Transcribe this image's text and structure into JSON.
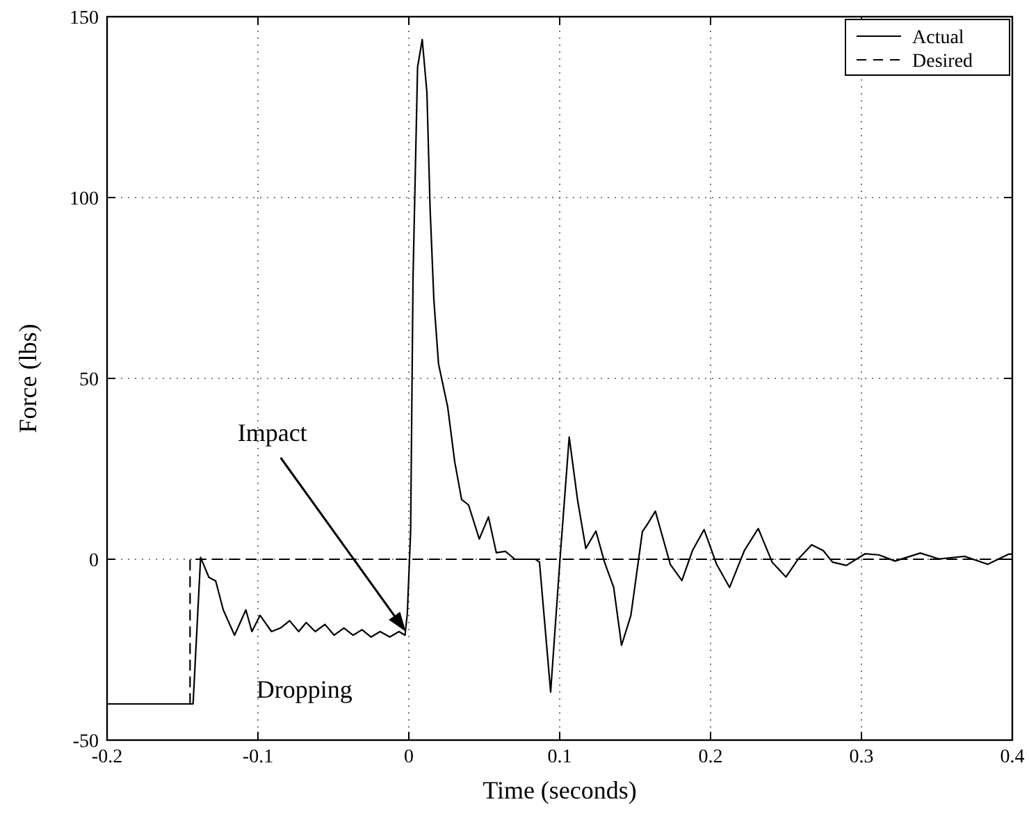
{
  "chart_data": {
    "type": "line",
    "xlabel": "Time (seconds)",
    "ylabel": "Force (lbs)",
    "xlim": [
      -0.2,
      0.4
    ],
    "xticks": [
      -0.2,
      -0.1,
      0,
      0.1,
      0.2,
      0.3,
      0.4
    ],
    "ylim": [
      -50,
      150
    ],
    "yticks": [
      -50,
      0,
      50,
      100,
      150
    ],
    "grid": true,
    "legend": "top right",
    "series": [
      {
        "name": "Actual",
        "color": "#000000",
        "line_style": "solid",
        "x": [
          -0.2,
          -0.143,
          -0.138,
          -0.1325,
          -0.128,
          -0.123,
          -0.1155,
          -0.108,
          -0.104,
          -0.0986,
          -0.091,
          -0.085,
          -0.079,
          -0.073,
          -0.068,
          -0.062,
          -0.0556,
          -0.0495,
          -0.043,
          -0.037,
          -0.031,
          -0.025,
          -0.019,
          -0.0126,
          -0.0065,
          -0.0025,
          -0.001,
          0.0012,
          0.0028,
          0.0058,
          0.0089,
          0.012,
          0.0141,
          0.0166,
          0.0197,
          0.0258,
          0.0304,
          0.035,
          0.0396,
          0.0467,
          0.0528,
          0.058,
          0.064,
          0.0703,
          0.084,
          0.0866,
          0.094,
          0.1002,
          0.1063,
          0.1118,
          0.1173,
          0.124,
          0.1297,
          0.1358,
          0.141,
          0.1472,
          0.1548,
          0.158,
          0.1634,
          0.1733,
          0.181,
          0.188,
          0.1957,
          0.204,
          0.2126,
          0.2224,
          0.2316,
          0.2408,
          0.25,
          0.2578,
          0.267,
          0.2747,
          0.2808,
          0.29,
          0.3023,
          0.3115,
          0.3223,
          0.339,
          0.3514,
          0.3684,
          0.3837,
          0.3975,
          0.4
        ],
        "values": [
          -40,
          -40,
          0.5,
          -5,
          -6,
          -14,
          -21,
          -14,
          -20,
          -15.5,
          -20,
          -19,
          -17,
          -20,
          -17.5,
          -20,
          -18,
          -21,
          -19,
          -21,
          -19.5,
          -21.5,
          -20,
          -21.5,
          -20,
          -21,
          -15,
          7.7,
          78,
          136,
          143.7,
          129,
          97,
          71.7,
          54,
          42,
          27,
          16.5,
          15,
          5.6,
          11.7,
          1.8,
          2.2,
          0,
          0,
          -0.8,
          -36.7,
          0,
          33.8,
          16.5,
          3,
          7.8,
          -0.8,
          -7.8,
          -23.8,
          -15.5,
          7.6,
          9.6,
          13.3,
          -1.4,
          -5.9,
          2.4,
          8.2,
          -1.4,
          -7.8,
          2.4,
          8.5,
          -0.8,
          -4.9,
          -0.1,
          4,
          2.4,
          -0.8,
          -1.7,
          1.5,
          1.2,
          -0.5,
          1.7,
          0.1,
          0.8,
          -1.4,
          1.4,
          1.4
        ]
      },
      {
        "name": "Desired",
        "color": "#000000",
        "line_style": "dashed",
        "x": [
          -0.2,
          -0.145,
          -0.145,
          0.4
        ],
        "values": [
          -40,
          -40,
          0,
          0
        ]
      }
    ],
    "annotations": [
      "Impact",
      "Dropping"
    ]
  }
}
